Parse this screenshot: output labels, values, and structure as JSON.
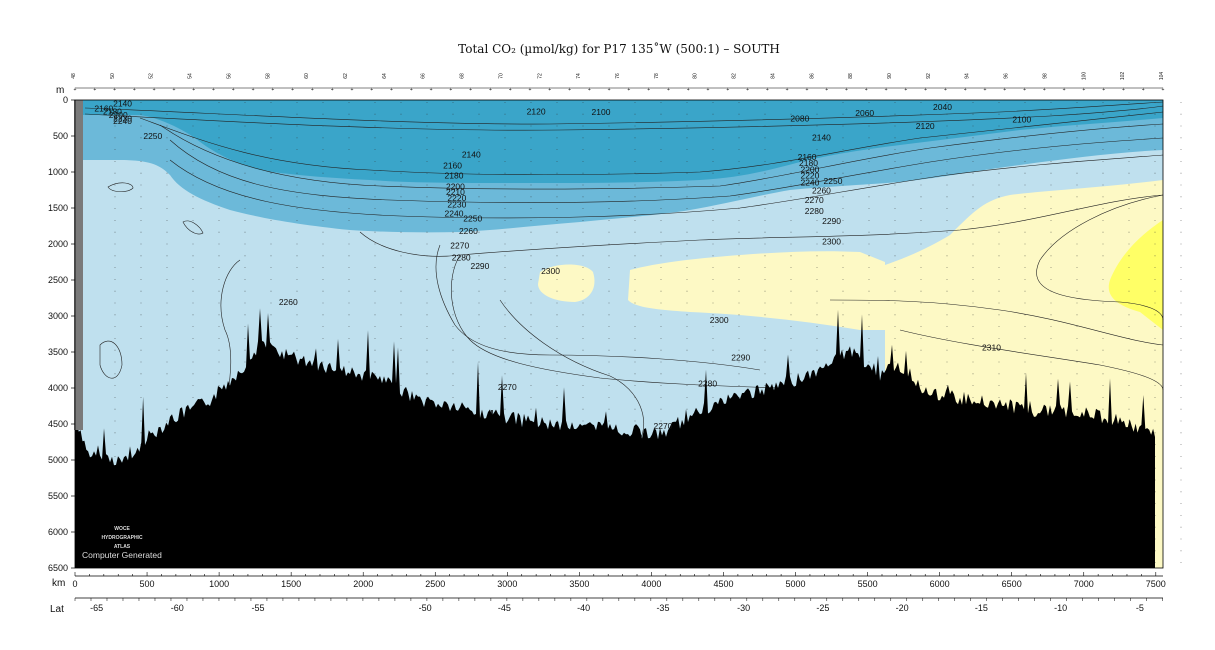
{
  "chart_data": {
    "type": "contour",
    "title": "Total CO₂ (µmol/kg) for P17 135˚W (500:1) – SOUTH",
    "depth_unit_label": "m",
    "distance_unit_label": "km",
    "latitude_label": "Lat",
    "xlim": [
      0,
      7550
    ],
    "ylim": [
      6500,
      0
    ],
    "depth_ticks": [
      0,
      500,
      1000,
      1500,
      2000,
      2500,
      3000,
      3500,
      4000,
      4500,
      5000,
      5500,
      6000,
      6500
    ],
    "distance_ticks": [
      0,
      500,
      1000,
      1500,
      2000,
      2500,
      3000,
      3500,
      4000,
      4500,
      5000,
      5500,
      6000,
      6500,
      7000,
      7500
    ],
    "latitude_ticks": [
      {
        "km": 150,
        "label": "-65"
      },
      {
        "km": 710,
        "label": "-60"
      },
      {
        "km": 1270,
        "label": "-55"
      },
      {
        "km": 2430,
        "label": "-50"
      },
      {
        "km": 2980,
        "label": "-45"
      },
      {
        "km": 3530,
        "label": "-40"
      },
      {
        "km": 4080,
        "label": "-35"
      },
      {
        "km": 4640,
        "label": "-30"
      },
      {
        "km": 5190,
        "label": "-25"
      },
      {
        "km": 5740,
        "label": "-20"
      },
      {
        "km": 6290,
        "label": "-15"
      },
      {
        "km": 6840,
        "label": "-10"
      },
      {
        "km": 7390,
        "label": "-5"
      }
    ],
    "station_labels": [
      "48",
      "50",
      "52",
      "54",
      "56",
      "58",
      "60",
      "62",
      "64",
      "66",
      "68",
      "70",
      "72",
      "74",
      "76",
      "78",
      "80",
      "82",
      "84",
      "86",
      "88",
      "90",
      "92",
      "94",
      "96",
      "98",
      "100",
      "102",
      "104"
    ],
    "fill_levels": [
      {
        "max": 2140,
        "color": "#3aa5c9"
      },
      {
        "max": 2250,
        "color": "#6cb9d9"
      },
      {
        "max": 2300,
        "color": "#bfe0ee"
      },
      {
        "max": 2320,
        "color": "#fdf9c5"
      },
      {
        "max": 9999,
        "color": "#ffff66"
      }
    ],
    "contour_labels": [
      {
        "text": "2140",
        "km": 330,
        "depth": 90
      },
      {
        "text": "2160",
        "km": 200,
        "depth": 160
      },
      {
        "text": "2180",
        "km": 260,
        "depth": 200
      },
      {
        "text": "2200",
        "km": 300,
        "depth": 250
      },
      {
        "text": "2230",
        "km": 330,
        "depth": 300
      },
      {
        "text": "2240",
        "km": 330,
        "depth": 330
      },
      {
        "text": "2250",
        "km": 540,
        "depth": 540
      },
      {
        "text": "2120",
        "km": 3200,
        "depth": 200
      },
      {
        "text": "2100",
        "km": 3650,
        "depth": 210
      },
      {
        "text": "2080",
        "km": 5030,
        "depth": 300
      },
      {
        "text": "2060",
        "km": 5480,
        "depth": 220
      },
      {
        "text": "2040",
        "km": 6020,
        "depth": 140
      },
      {
        "text": "2100",
        "km": 6570,
        "depth": 310
      },
      {
        "text": "2120",
        "km": 5900,
        "depth": 400
      },
      {
        "text": "2140",
        "km": 5180,
        "depth": 560
      },
      {
        "text": "2140",
        "km": 2750,
        "depth": 800
      },
      {
        "text": "2160",
        "km": 2620,
        "depth": 950
      },
      {
        "text": "2180",
        "km": 2630,
        "depth": 1090
      },
      {
        "text": "2200",
        "km": 2640,
        "depth": 1240
      },
      {
        "text": "2210",
        "km": 2640,
        "depth": 1320
      },
      {
        "text": "2220",
        "km": 2650,
        "depth": 1400
      },
      {
        "text": "2230",
        "km": 2650,
        "depth": 1490
      },
      {
        "text": "2240",
        "km": 2630,
        "depth": 1620
      },
      {
        "text": "2250",
        "km": 2760,
        "depth": 1690
      },
      {
        "text": "2260",
        "km": 2730,
        "depth": 1860
      },
      {
        "text": "2270",
        "km": 2670,
        "depth": 2060
      },
      {
        "text": "2280",
        "km": 2680,
        "depth": 2230
      },
      {
        "text": "2290",
        "km": 2810,
        "depth": 2350
      },
      {
        "text": "2300",
        "km": 3300,
        "depth": 2420
      },
      {
        "text": "2160",
        "km": 5080,
        "depth": 830
      },
      {
        "text": "2180",
        "km": 5090,
        "depth": 920
      },
      {
        "text": "2200",
        "km": 5100,
        "depth": 1010
      },
      {
        "text": "2220",
        "km": 5100,
        "depth": 1090
      },
      {
        "text": "2240",
        "km": 5100,
        "depth": 1190
      },
      {
        "text": "2250",
        "km": 5260,
        "depth": 1170
      },
      {
        "text": "2260",
        "km": 5180,
        "depth": 1300
      },
      {
        "text": "2270",
        "km": 5130,
        "depth": 1430
      },
      {
        "text": "2280",
        "km": 5130,
        "depth": 1580
      },
      {
        "text": "2290",
        "km": 5250,
        "depth": 1720
      },
      {
        "text": "2300",
        "km": 5250,
        "depth": 2010
      },
      {
        "text": "2260",
        "km": 1480,
        "depth": 2850
      },
      {
        "text": "2300",
        "km": 4470,
        "depth": 3100
      },
      {
        "text": "2310",
        "km": 6360,
        "depth": 3480
      },
      {
        "text": "2290",
        "km": 4620,
        "depth": 3620
      },
      {
        "text": "2280",
        "km": 4390,
        "depth": 3980
      },
      {
        "text": "2270",
        "km": 3000,
        "depth": 4030
      },
      {
        "text": "2270",
        "km": 4080,
        "depth": 4570
      }
    ],
    "watermark_lines": [
      "WOCE",
      "HYDROGRAPHIC",
      "ATLAS"
    ],
    "computer_generated": "Computer Generated"
  }
}
